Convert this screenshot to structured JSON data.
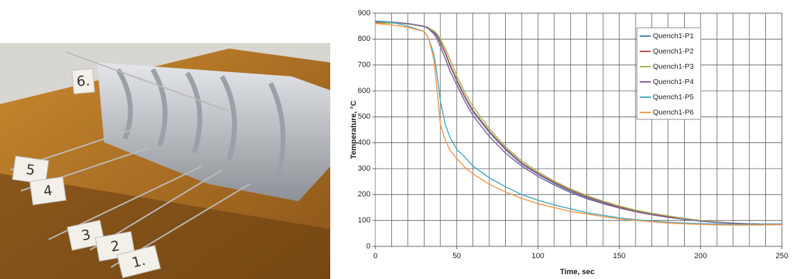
{
  "photo": {
    "labels": [
      "6.",
      "5",
      "4",
      "3",
      "2",
      "1."
    ]
  },
  "chart_data": {
    "type": "line",
    "xlabel": "Time, sec",
    "ylabel": "Temperature, °C",
    "x": [
      0,
      10,
      20,
      30,
      33,
      36,
      38,
      40,
      43,
      46,
      50,
      55,
      60,
      70,
      80,
      90,
      100,
      110,
      120,
      130,
      140,
      150,
      160,
      170,
      180,
      190,
      200,
      210,
      220,
      230,
      240,
      250
    ],
    "series": [
      {
        "name": "Quench1-P1",
        "color": "#4a7ebb",
        "values": [
          870,
          866,
          860,
          848,
          840,
          825,
          810,
          785,
          745,
          695,
          640,
          575,
          520,
          440,
          373,
          318,
          278,
          243,
          213,
          188,
          168,
          150,
          136,
          124,
          114,
          105,
          98,
          93,
          89,
          87,
          86,
          86
        ]
      },
      {
        "name": "Quench1-P2",
        "color": "#be4b48",
        "values": [
          865,
          865,
          860,
          850,
          843,
          830,
          815,
          790,
          750,
          700,
          645,
          580,
          525,
          445,
          378,
          322,
          282,
          247,
          217,
          192,
          172,
          153,
          138,
          126,
          116,
          107,
          99,
          94,
          90,
          87,
          86,
          86
        ]
      },
      {
        "name": "Quench1-P3",
        "color": "#98b954",
        "values": [
          860,
          862,
          858,
          848,
          842,
          832,
          820,
          800,
          765,
          720,
          660,
          595,
          540,
          455,
          385,
          330,
          288,
          252,
          222,
          196,
          175,
          156,
          140,
          128,
          118,
          108,
          100,
          94,
          90,
          87,
          86,
          86
        ]
      },
      {
        "name": "Quench1-P4",
        "color": "#7d60a0",
        "values": [
          868,
          866,
          860,
          850,
          838,
          820,
          800,
          770,
          725,
          675,
          625,
          560,
          505,
          425,
          360,
          310,
          270,
          237,
          208,
          184,
          165,
          148,
          134,
          122,
          112,
          104,
          97,
          92,
          89,
          87,
          86,
          86
        ]
      },
      {
        "name": "Quench1-P5",
        "color": "#46aac5",
        "values": [
          870,
          865,
          850,
          830,
          800,
          740,
          660,
          560,
          470,
          420,
          375,
          345,
          310,
          265,
          230,
          200,
          178,
          160,
          145,
          130,
          120,
          110,
          103,
          98,
          93,
          90,
          88,
          86,
          85,
          85,
          85,
          85
        ]
      },
      {
        "name": "Quench1-P6",
        "color": "#f79646",
        "values": [
          860,
          855,
          845,
          830,
          800,
          720,
          600,
          470,
          410,
          370,
          340,
          305,
          280,
          240,
          210,
          185,
          165,
          150,
          135,
          125,
          115,
          106,
          100,
          95,
          90,
          87,
          85,
          83,
          82,
          82,
          83,
          84
        ]
      }
    ],
    "xlim": [
      0,
      250
    ],
    "ylim": [
      0,
      900
    ],
    "xticks": [
      0,
      50,
      100,
      150,
      200,
      250
    ],
    "yticks": [
      0,
      100,
      200,
      300,
      400,
      500,
      600,
      700,
      800,
      900
    ],
    "xgrid": [
      10,
      20,
      30,
      40,
      50,
      60,
      70,
      80,
      90,
      100,
      110,
      120,
      130,
      140,
      150,
      160,
      170,
      180,
      190,
      200,
      210,
      220,
      230,
      240,
      250
    ],
    "grid": true,
    "legend": "upper right"
  }
}
